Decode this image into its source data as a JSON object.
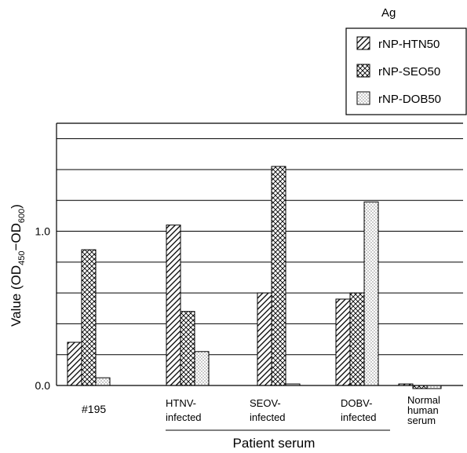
{
  "chart_data": {
    "type": "bar",
    "legend_title": "Ag",
    "legend_position": "top-right",
    "xlabel": "Patient serum",
    "ylabel": {
      "prefix": "Value (OD",
      "sub1": "450",
      "middle": "−OD",
      "sub2": "600",
      "suffix": ")"
    },
    "ylim": [
      0.0,
      1.7
    ],
    "yticks": [
      {
        "value": 0.0,
        "label": "0.0"
      },
      {
        "value": 1.0,
        "label": "1.0"
      }
    ],
    "gridlines": [
      0.2,
      0.4,
      0.6,
      0.8,
      1.0,
      1.2,
      1.4,
      1.6
    ],
    "categories": [
      {
        "lines": [
          "#195"
        ]
      },
      {
        "lines": [
          "HTNV-",
          "infected"
        ]
      },
      {
        "lines": [
          "SEOV-",
          "infected"
        ]
      },
      {
        "lines": [
          "DOBV-",
          "infected"
        ]
      },
      {
        "lines": [
          "Normal",
          "human",
          "serum"
        ]
      }
    ],
    "series": [
      {
        "name": "rNP-HTN50",
        "pattern": "hatch",
        "values": [
          0.28,
          1.04,
          0.6,
          0.56,
          0.01
        ]
      },
      {
        "name": "rNP-SEO50",
        "pattern": "cross",
        "values": [
          0.88,
          0.48,
          1.42,
          0.6,
          -0.02
        ]
      },
      {
        "name": "rNP-DOB50",
        "pattern": "dots",
        "values": [
          0.05,
          0.22,
          0.01,
          1.19,
          -0.02
        ]
      }
    ]
  }
}
